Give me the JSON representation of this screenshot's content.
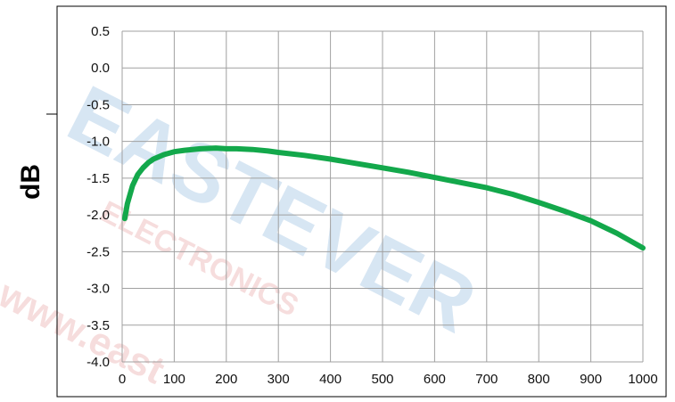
{
  "watermark": {
    "brand": "EASTEVER",
    "sub": "ELECTRONICS",
    "url": "www.east",
    "brand_color": "#8fb8de",
    "sub_color": "#e8a0a0"
  },
  "chart_data": {
    "type": "line",
    "title": "",
    "xlabel": "",
    "ylabel": "dB",
    "xlim": [
      0,
      1000
    ],
    "ylim": [
      -4.0,
      0.5
    ],
    "x_ticks": [
      "0",
      "100",
      "200",
      "300",
      "400",
      "500",
      "600",
      "700",
      "800",
      "900",
      "1000"
    ],
    "y_ticks": [
      "0.5",
      "0.0",
      "-0.5",
      "-1.0",
      "-1.5",
      "-2.0",
      "-2.5",
      "-3.0",
      "-3.5",
      "-4.0"
    ],
    "grid": true,
    "legend": "none",
    "series": [
      {
        "color": "#13a84b",
        "x": [
          5,
          10,
          20,
          30,
          40,
          50,
          60,
          80,
          100,
          120,
          150,
          180,
          200,
          220,
          250,
          280,
          300,
          350,
          400,
          450,
          500,
          550,
          600,
          650,
          700,
          750,
          800,
          850,
          900,
          950,
          1000
        ],
        "y": [
          -2.05,
          -1.85,
          -1.6,
          -1.45,
          -1.36,
          -1.29,
          -1.24,
          -1.18,
          -1.14,
          -1.12,
          -1.1,
          -1.09,
          -1.1,
          -1.1,
          -1.11,
          -1.13,
          -1.15,
          -1.19,
          -1.24,
          -1.3,
          -1.36,
          -1.42,
          -1.49,
          -1.56,
          -1.63,
          -1.72,
          -1.83,
          -1.95,
          -2.08,
          -2.25,
          -2.45
        ]
      }
    ]
  }
}
